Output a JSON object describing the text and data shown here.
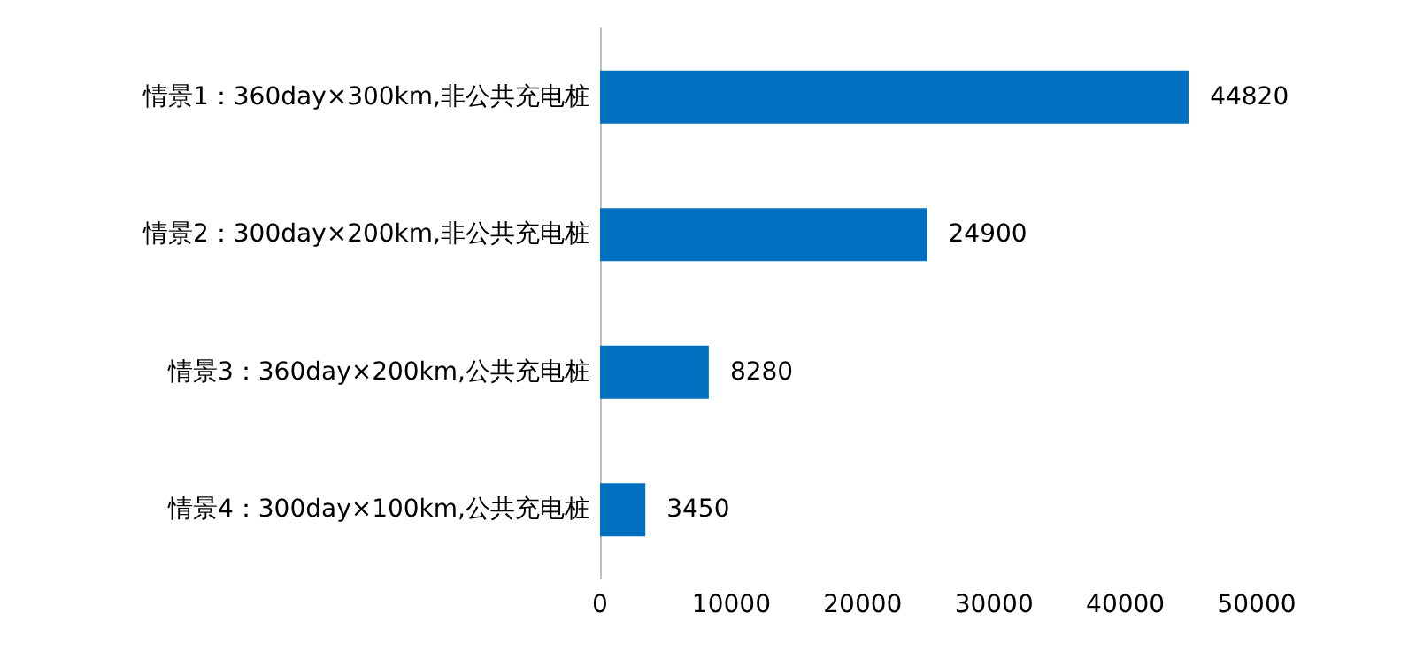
{
  "chart_data": {
    "type": "bar",
    "orientation": "horizontal",
    "categories": [
      "情景1：360day×300km,非公共充电桩",
      "情景2：300day×200km,非公共充电桩",
      "情景3：360day×200km,公共充电桩",
      "情景4：300day×100km,公共充电桩"
    ],
    "values": [
      44820,
      24900,
      8280,
      3450
    ],
    "color": "#0070c0",
    "data_labels": true,
    "xlim": [
      0,
      50000
    ],
    "xticks": [
      0,
      10000,
      20000,
      30000,
      40000,
      50000
    ],
    "grid": false
  }
}
